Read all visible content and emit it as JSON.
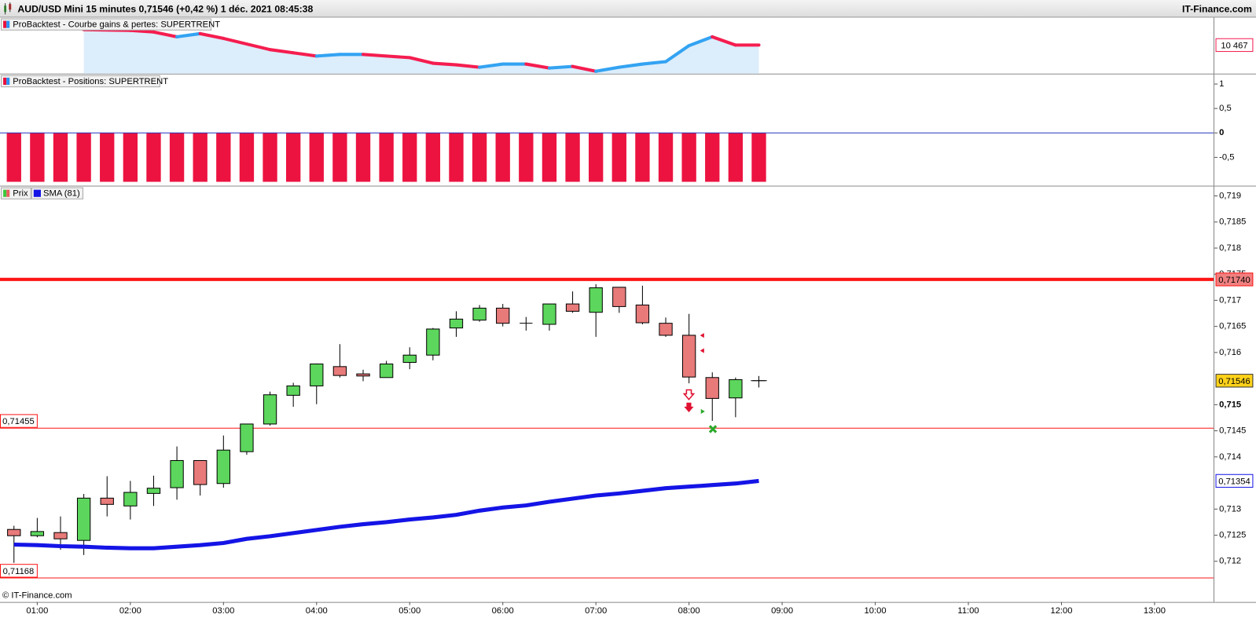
{
  "header": {
    "title": "AUD/USD Mini 15 minutes 0,71546 (+0,42 %) 1 déc. 2021 08:45:38",
    "brand": "IT-Finance.com",
    "footer": "© IT-Finance.com"
  },
  "chart_data": [
    {
      "type": "line",
      "x": [
        "01:30",
        "02:00",
        "02:15",
        "02:30",
        "02:45",
        "03:00",
        "03:30",
        "03:45",
        "04:00",
        "04:15",
        "04:30",
        "04:45",
        "05:00",
        "05:15",
        "05:30",
        "05:45",
        "06:00",
        "06:15",
        "06:30",
        "06:45",
        "07:00",
        "07:15",
        "07:30",
        "07:45",
        "08:00",
        "08:15",
        "08:30",
        "08:45"
      ],
      "series": [
        {
          "name": "ProBacktest - Courbe gains & pertes: SUPERTRENT",
          "up_color": "#33a3f2",
          "down_color": "#f51d4f",
          "fill": "#dcedfb",
          "values": [
            10660,
            10650,
            10630,
            10570,
            10610,
            10550,
            10410,
            10370,
            10330,
            10350,
            10350,
            10330,
            10310,
            10240,
            10220,
            10190,
            10230,
            10230,
            10180,
            10200,
            10140,
            10190,
            10230,
            10260,
            10460,
            10570,
            10467,
            10467
          ],
          "last_label": "10 467"
        }
      ],
      "ylim": [
        10110,
        10810
      ]
    },
    {
      "type": "bar",
      "x": [
        "00:45",
        "01:00",
        "01:15",
        "01:30",
        "01:45",
        "02:00",
        "02:15",
        "02:30",
        "02:45",
        "03:00",
        "03:15",
        "03:30",
        "03:45",
        "04:00",
        "04:15",
        "04:30",
        "04:45",
        "05:00",
        "05:15",
        "05:30",
        "05:45",
        "06:00",
        "06:15",
        "06:30",
        "06:45",
        "07:00",
        "07:15",
        "07:30",
        "07:45",
        "08:00",
        "08:15",
        "08:30",
        "08:45"
      ],
      "series": [
        {
          "name": "ProBacktest - Positions: SUPERTRENT",
          "color": "#ec1340",
          "values": [
            -1,
            -1,
            -1,
            -1,
            -1,
            -1,
            -1,
            -1,
            -1,
            -1,
            -1,
            -1,
            -1,
            -1,
            -1,
            -1,
            -1,
            -1,
            -1,
            -1,
            -1,
            -1,
            -1,
            -1,
            -1,
            -1,
            -1,
            -1,
            -1,
            -1,
            -1,
            -1,
            -1
          ]
        }
      ],
      "ylim": [
        -1.08,
        1.18
      ],
      "yticks": [
        1,
        {
          "value": 0.5,
          "label": "0,5"
        },
        0,
        {
          "value": -0.5,
          "label": "-0,5"
        }
      ],
      "bold_ticks": [
        0
      ],
      "zero_line_color": "#2233bb"
    },
    {
      "type": "candlestick",
      "x": [
        "00:45",
        "01:00",
        "01:15",
        "01:30",
        "01:45",
        "02:00",
        "02:15",
        "02:30",
        "02:45",
        "03:00",
        "03:15",
        "03:30",
        "03:45",
        "04:00",
        "04:15",
        "04:30",
        "04:45",
        "05:00",
        "05:15",
        "05:30",
        "05:45",
        "06:00",
        "06:15",
        "06:30",
        "06:45",
        "07:00",
        "07:15",
        "07:30",
        "07:45",
        "08:00",
        "08:15",
        "08:30",
        "08:45"
      ],
      "xlim": [
        "00:36",
        "13:38"
      ],
      "xticks": [
        "01:00",
        "02:00",
        "03:00",
        "04:00",
        "05:00",
        "06:00",
        "07:00",
        "08:00",
        "09:00",
        "10:00",
        "11:00",
        "12:00",
        "13:00"
      ],
      "ylim": [
        0.71122,
        0.71918
      ],
      "yticks": [
        {
          "value": 0.719,
          "label": "0,719"
        },
        {
          "value": 0.7185,
          "label": "0,7185"
        },
        {
          "value": 0.718,
          "label": "0,718"
        },
        {
          "value": 0.7175,
          "label": "0,7175"
        },
        {
          "value": 0.717,
          "label": "0,717"
        },
        {
          "value": 0.7165,
          "label": "0,7165"
        },
        {
          "value": 0.716,
          "label": "0,716"
        },
        {
          "value": 0.715,
          "label": "0,715"
        },
        {
          "value": 0.7145,
          "label": "0,7145"
        },
        {
          "value": 0.714,
          "label": "0,714"
        },
        {
          "value": 0.713,
          "label": "0,713"
        },
        {
          "value": 0.7125,
          "label": "0,7125"
        },
        {
          "value": 0.712,
          "label": "0,712"
        }
      ],
      "bold_ticks": [
        0.715
      ],
      "series": [
        {
          "name": "Prix",
          "up_color": "#5cd65c",
          "down_color": "#e87a7a",
          "open": [
            0.71261,
            0.71249,
            0.71255,
            0.7124,
            0.71321,
            0.71306,
            0.7133,
            0.71341,
            0.71393,
            0.71349,
            0.7141,
            0.71463,
            0.71518,
            0.71536,
            0.71573,
            0.71559,
            0.71552,
            0.71581,
            0.71595,
            0.71647,
            0.71662,
            0.71685,
            0.71656,
            0.71654,
            0.71693,
            0.71677,
            0.71725,
            0.71691,
            0.71656,
            0.71633,
            0.71552,
            0.71513,
            0.71546
          ],
          "high": [
            0.71268,
            0.71283,
            0.71286,
            0.71329,
            0.71363,
            0.71354,
            0.71364,
            0.7142,
            0.71393,
            0.71441,
            0.71463,
            0.71525,
            0.71542,
            0.71579,
            0.71616,
            0.71567,
            0.71584,
            0.7161,
            0.71647,
            0.71679,
            0.71691,
            0.71693,
            0.71668,
            0.71693,
            0.71717,
            0.71731,
            0.71725,
            0.71728,
            0.71667,
            0.71674,
            0.71562,
            0.71552,
            0.71555
          ],
          "low": [
            0.71197,
            0.71246,
            0.71222,
            0.71212,
            0.71286,
            0.7128,
            0.71306,
            0.71318,
            0.71326,
            0.71341,
            0.71404,
            0.7146,
            0.71496,
            0.71501,
            0.71552,
            0.71545,
            0.71552,
            0.71568,
            0.71585,
            0.7163,
            0.71659,
            0.7165,
            0.71642,
            0.71642,
            0.71676,
            0.7163,
            0.71676,
            0.71654,
            0.7163,
            0.71541,
            0.71469,
            0.71476,
            0.71533
          ],
          "close": [
            0.71249,
            0.71257,
            0.71243,
            0.71321,
            0.71309,
            0.71332,
            0.7134,
            0.71393,
            0.71347,
            0.71413,
            0.71463,
            0.71519,
            0.71536,
            0.71578,
            0.71556,
            0.71555,
            0.71578,
            0.71595,
            0.71645,
            0.71664,
            0.71685,
            0.71656,
            0.71656,
            0.71693,
            0.71679,
            0.71724,
            0.71688,
            0.71657,
            0.71633,
            0.71553,
            0.71512,
            0.71548,
            0.71546
          ]
        },
        {
          "name": "SMA (81)",
          "color": "#1414e6",
          "values": [
            0.71232,
            0.71231,
            0.71229,
            0.71228,
            0.71226,
            0.71225,
            0.71225,
            0.71228,
            0.71231,
            0.71235,
            0.71243,
            0.71248,
            0.71254,
            0.7126,
            0.71266,
            0.71271,
            0.71275,
            0.7128,
            0.71284,
            0.71289,
            0.71297,
            0.71303,
            0.71307,
            0.71314,
            0.7132,
            0.71326,
            0.7133,
            0.71335,
            0.7134,
            0.71343,
            0.71346,
            0.71349,
            0.71354
          ],
          "last_label": "0,71354"
        }
      ],
      "levels": [
        {
          "value": 0.7174,
          "label": "0,71740",
          "color": "#ff1414",
          "style": "thick",
          "label_side": "right"
        },
        {
          "value": 0.71455,
          "label": "0,71455",
          "color": "#ff1414",
          "style": "thin",
          "label_side": "left"
        },
        {
          "value": 0.71168,
          "label": "0,71168",
          "color": "#ff1414",
          "style": "thin",
          "label_side": "left"
        }
      ],
      "current": {
        "value": 0.71546,
        "label": "0,71546",
        "color": "#ffd21a"
      }
    }
  ]
}
